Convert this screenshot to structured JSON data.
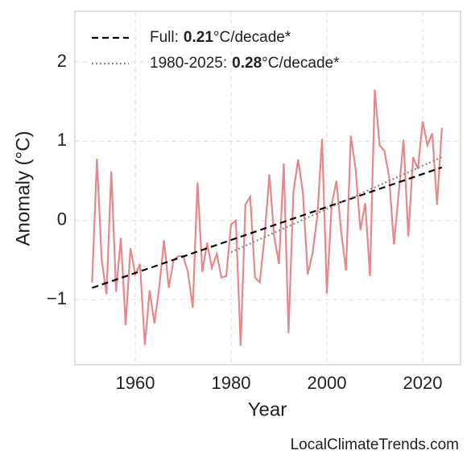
{
  "chart_data": {
    "type": "line",
    "x_label": "Year",
    "y_label": "Anomaly (°C)",
    "source": "LocalClimateTrends.com",
    "xlim": [
      1947.4,
      2027.9
    ],
    "ylim": [
      -1.82,
      2.64
    ],
    "xticks": [
      1960,
      1980,
      2000,
      2020
    ],
    "yticks": [
      {
        "value": -1,
        "label": "−1"
      },
      0,
      1,
      2
    ],
    "grid": true,
    "legend": "upper left",
    "series": [
      {
        "color": "#e8878a",
        "style": "solid",
        "x": [
          1951,
          1952,
          1953,
          1954,
          1955,
          1956,
          1957,
          1958,
          1959,
          1960,
          1961,
          1962,
          1963,
          1964,
          1965,
          1966,
          1967,
          1968,
          1969,
          1970,
          1971,
          1972,
          1973,
          1974,
          1975,
          1976,
          1977,
          1978,
          1979,
          1980,
          1981,
          1982,
          1983,
          1984,
          1985,
          1986,
          1987,
          1988,
          1989,
          1990,
          1991,
          1992,
          1993,
          1994,
          1995,
          1996,
          1997,
          1998,
          1999,
          2000,
          2001,
          2002,
          2003,
          2004,
          2005,
          2006,
          2007,
          2008,
          2009,
          2010,
          2011,
          2012,
          2013,
          2014,
          2015,
          2016,
          2017,
          2018,
          2019,
          2020,
          2021,
          2022,
          2023,
          2024
        ],
        "values": [
          -0.78,
          0.78,
          -0.5,
          -0.93,
          0.62,
          -0.9,
          -0.22,
          -1.32,
          -0.35,
          -0.68,
          -0.55,
          -1.57,
          -0.88,
          -1.3,
          -0.85,
          -0.25,
          -0.85,
          -0.5,
          -0.45,
          -0.45,
          -0.65,
          -1.1,
          0.48,
          -0.65,
          -0.28,
          -0.6,
          -0.42,
          -0.72,
          -0.7,
          -0.05,
          0.0,
          -1.58,
          0.2,
          0.3,
          -0.72,
          -0.78,
          -0.2,
          0.58,
          -0.2,
          -0.55,
          0.72,
          -1.42,
          0.35,
          0.77,
          0.35,
          -0.68,
          -0.42,
          0.05,
          1.03,
          -0.92,
          0.2,
          0.5,
          -0.15,
          -0.63,
          1.07,
          0.65,
          -0.12,
          0.22,
          -0.7,
          1.65,
          0.95,
          0.88,
          0.55,
          -0.3,
          0.35,
          1.02,
          -0.2,
          0.8,
          0.65,
          1.25,
          0.95,
          1.1,
          0.2,
          1.17
        ]
      },
      {
        "name": [
          "Full:",
          "0.21",
          "°C/decade*"
        ],
        "color": "#000000",
        "style": "dashed",
        "x": [
          1951,
          2024
        ],
        "values": [
          -0.85,
          0.67
        ]
      },
      {
        "name": [
          "1980-2025:",
          "0.28",
          "°C/decade*"
        ],
        "color": "#888888",
        "style": "dotted",
        "x": [
          1980,
          2024
        ],
        "values": [
          -0.4,
          0.8
        ]
      }
    ]
  }
}
